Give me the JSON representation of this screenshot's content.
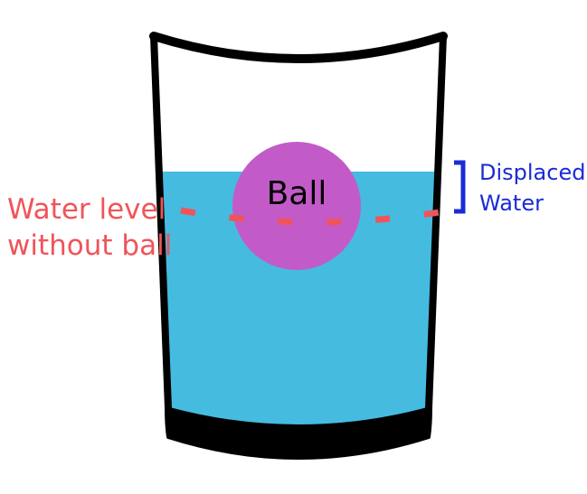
{
  "labels": {
    "ball": "Ball",
    "water_level_line1": "Water level",
    "water_level_line2": "without ball",
    "displaced_line1": "Displaced",
    "displaced_line2": "Water"
  },
  "colors": {
    "water": "#45BBE0",
    "ball": "#C25BC8",
    "glass_outline": "#000000",
    "level_line": "#F0545A",
    "level_text": "#F0545A",
    "displaced_text": "#1A2BD6",
    "bracket": "#1A2BD6",
    "ball_text": "#000000"
  },
  "icons": {
    "glass": "glass-icon",
    "bracket": "bracket-icon"
  }
}
